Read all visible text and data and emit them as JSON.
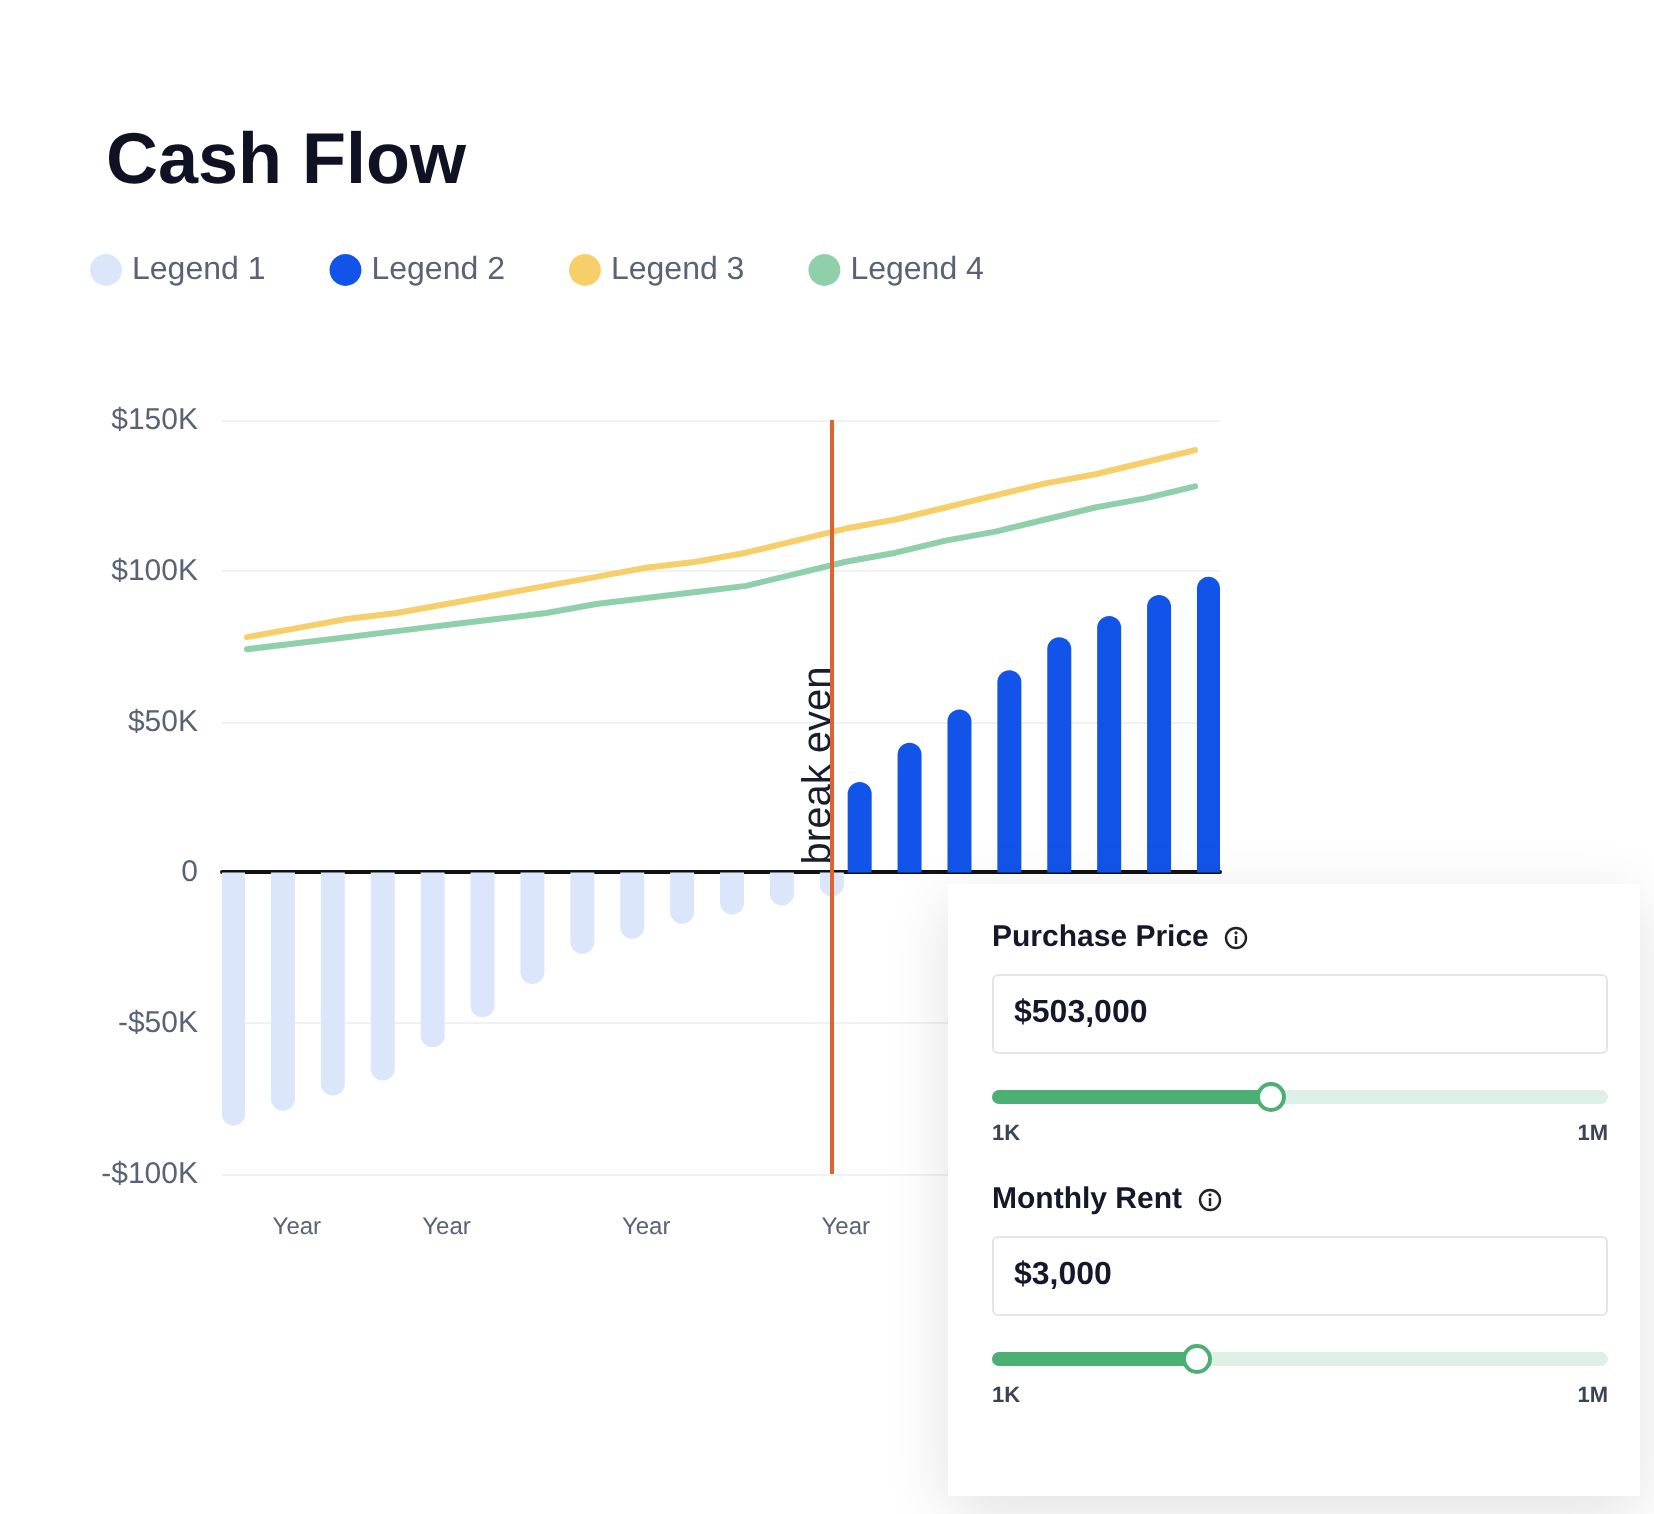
{
  "chart_data": [
    {
      "type": "bar",
      "title": "Cash Flow",
      "categories": [
        null,
        "Year",
        null,
        null,
        "Year",
        null,
        null,
        null,
        "Year",
        null,
        null,
        null,
        "Year",
        null,
        null,
        null,
        null,
        null,
        null,
        null
      ],
      "series": [
        {
          "name": "Legend 1",
          "color": "#dce6fb",
          "values": [
            -84,
            -79,
            -74,
            -69,
            -58,
            -48,
            -37,
            -27,
            -22,
            -17,
            -14,
            -11,
            -8,
            null,
            null,
            null,
            null,
            null,
            null,
            null
          ]
        },
        {
          "name": "Legend 2",
          "color": "#1254e9",
          "values": [
            null,
            null,
            null,
            null,
            null,
            null,
            null,
            null,
            null,
            null,
            null,
            null,
            30,
            43,
            54,
            67,
            78,
            85,
            92,
            98
          ]
        },
        {
          "name": "Legend 3",
          "type": "line",
          "color": "#f7cf6a",
          "values": [
            78,
            81,
            84,
            86,
            89,
            92,
            95,
            98,
            101,
            103,
            106,
            110,
            114,
            117,
            121,
            125,
            129,
            132,
            136,
            140
          ]
        },
        {
          "name": "Legend 4",
          "type": "line",
          "color": "#8fcfa9",
          "values": [
            74,
            76,
            78,
            80,
            82,
            84,
            86,
            89,
            91,
            93,
            95,
            99,
            103,
            106,
            110,
            113,
            117,
            121,
            124,
            128
          ]
        }
      ],
      "ylim": [
        -100,
        150
      ],
      "yticks": [
        {
          "value": -100,
          "label": "-$100K"
        },
        {
          "value": -50,
          "label": "-$50K"
        },
        {
          "value": 0,
          "label": "0"
        },
        {
          "value": 50,
          "label": "$50K"
        },
        {
          "value": 100,
          "label": "$100K"
        },
        {
          "value": 150,
          "label": "$150K"
        }
      ],
      "grid": "y",
      "legend": "top left",
      "marker": "none",
      "annotations": [
        "break even"
      ]
    },
    {
      "type": "other",
      "annotations": [
        "Purchase Price",
        "$503,000",
        "1K",
        "1M",
        "Monthly Rent",
        "$3,000",
        "1K",
        "1M"
      ]
    }
  ]
}
